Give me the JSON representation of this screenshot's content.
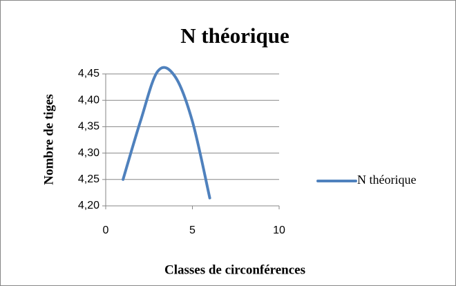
{
  "chart_data": {
    "type": "line",
    "title": "N théorique",
    "x_label": "Classes de circonférences",
    "y_label": "Nombre de tiges",
    "x": [
      1,
      2,
      3,
      4,
      5,
      6
    ],
    "series": [
      {
        "name": "N théorique",
        "color": "#4f81bd",
        "values": [
          4.25,
          4.36,
          4.455,
          4.445,
          4.36,
          4.215
        ]
      }
    ],
    "xlim": [
      0,
      10
    ],
    "xticks": [
      0,
      5,
      10
    ],
    "ylim": [
      4.2,
      4.45
    ],
    "yticks": [
      {
        "value": 4.2,
        "label": "4,20"
      },
      {
        "value": 4.25,
        "label": "4,25"
      },
      {
        "value": 4.3,
        "label": "4,30"
      },
      {
        "value": 4.35,
        "label": "4,35"
      },
      {
        "value": 4.4,
        "label": "4,40"
      },
      {
        "value": 4.45,
        "label": "4,45"
      }
    ],
    "grid": true,
    "smooth": true,
    "legend": "right"
  }
}
